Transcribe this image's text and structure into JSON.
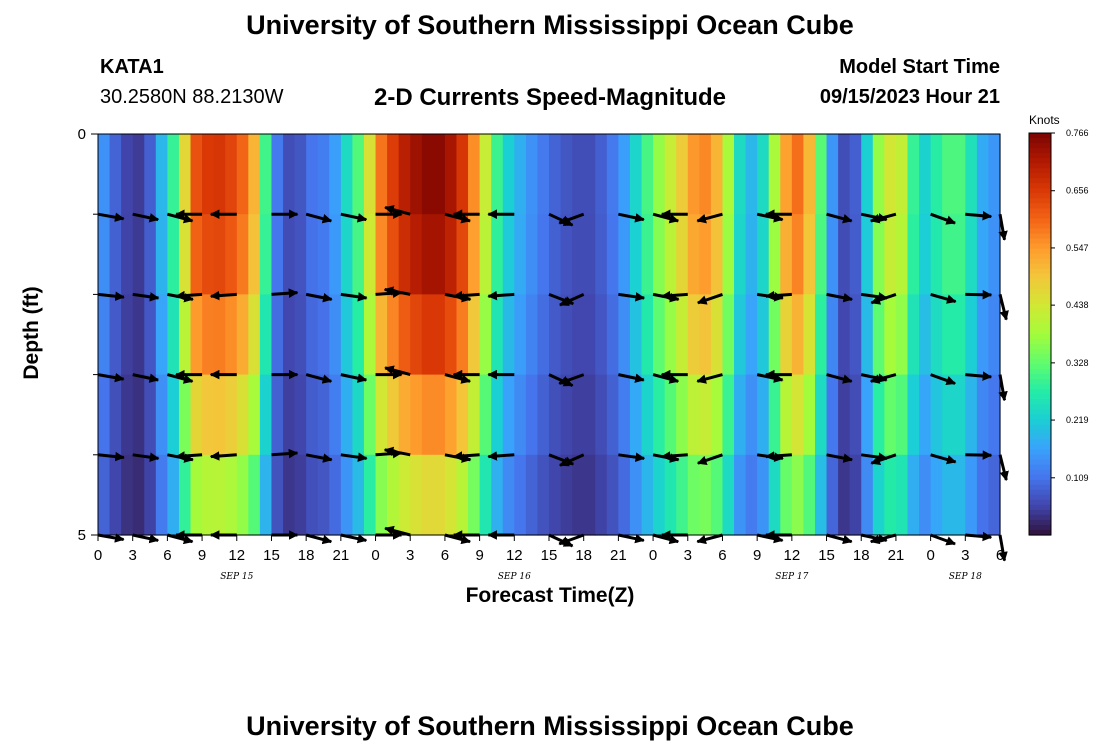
{
  "header": {
    "title": "University of Southern Mississippi Ocean Cube",
    "station": "KATA1",
    "coords": "30.2580N  88.2130W",
    "plot_title": "2-D Currents Speed-Magnitude",
    "model_label": "Model Start Time",
    "model_time": "09/15/2023 Hour 21"
  },
  "footer": {
    "title": "University of Southern Mississippi Ocean Cube"
  },
  "colors": {
    "palette": [
      "#30123b",
      "#4145ab",
      "#4675ed",
      "#39a2fc",
      "#1bcfd4",
      "#24eca6",
      "#61fc6c",
      "#a4fc3b",
      "#d1e834",
      "#f3c63a",
      "#fe9b2d",
      "#f36315",
      "#d93806",
      "#b11901",
      "#7a0403"
    ]
  },
  "chart_data": {
    "type": "heatmap",
    "title": "2-D Currents Speed-Magnitude",
    "xlabel": "Forecast Time(Z)",
    "ylabel": "Depth (ft)",
    "ylim": [
      0,
      5
    ],
    "y_ticks": [
      "0",
      "5"
    ],
    "x_tick_labels": [
      "0",
      "3",
      "6",
      "9",
      "12",
      "15",
      "18",
      "21",
      "0",
      "3",
      "6",
      "9",
      "12",
      "15",
      "18",
      "21",
      "0",
      "3",
      "6",
      "9",
      "12",
      "15",
      "18",
      "21",
      "0",
      "3",
      "6"
    ],
    "date_labels": [
      {
        "label": "SEP 15",
        "hour": 12
      },
      {
        "label": "SEP 16",
        "hour": 36
      },
      {
        "label": "SEP 17",
        "hour": 60
      },
      {
        "label": "SEP 18",
        "hour": 75
      }
    ],
    "hours_total": 78,
    "colorbar": {
      "unit": "Knots",
      "ticks": [
        "0.766",
        "0.656",
        "0.547",
        "0.438",
        "0.328",
        "0.219",
        "0.109"
      ],
      "tick_values": [
        0.766,
        0.656,
        0.547,
        0.438,
        0.328,
        0.219,
        0.109
      ],
      "min": 0.0,
      "max": 0.766
    },
    "time_profile": [
      [
        0,
        0.17
      ],
      [
        1,
        0.12
      ],
      [
        2,
        0.06
      ],
      [
        3,
        0.05
      ],
      [
        4,
        0.04
      ],
      [
        5,
        0.13
      ],
      [
        6,
        0.25
      ],
      [
        7,
        0.33
      ],
      [
        8,
        0.6
      ],
      [
        9,
        0.65
      ],
      [
        10,
        0.66
      ],
      [
        11,
        0.66
      ],
      [
        12,
        0.62
      ],
      [
        13,
        0.58
      ],
      [
        14,
        0.45
      ],
      [
        15,
        0.15
      ],
      [
        16,
        0.08
      ],
      [
        17,
        0.05
      ],
      [
        18,
        0.1
      ],
      [
        19,
        0.12
      ],
      [
        20,
        0.12
      ],
      [
        21,
        0.2
      ],
      [
        22,
        0.28
      ],
      [
        23,
        0.35
      ],
      [
        24,
        0.55
      ],
      [
        25,
        0.62
      ],
      [
        26,
        0.68
      ],
      [
        27,
        0.72
      ],
      [
        28,
        0.74
      ],
      [
        29,
        0.76
      ],
      [
        30,
        0.74
      ],
      [
        31,
        0.7
      ],
      [
        32,
        0.62
      ],
      [
        33,
        0.5
      ],
      [
        34,
        0.35
      ],
      [
        35,
        0.24
      ],
      [
        36,
        0.2
      ],
      [
        37,
        0.16
      ],
      [
        38,
        0.13
      ],
      [
        39,
        0.1
      ],
      [
        40,
        0.08
      ],
      [
        41,
        0.07
      ],
      [
        42,
        0.06
      ],
      [
        43,
        0.07
      ],
      [
        44,
        0.1
      ],
      [
        45,
        0.13
      ],
      [
        46,
        0.19
      ],
      [
        47,
        0.27
      ],
      [
        48,
        0.34
      ],
      [
        49,
        0.4
      ],
      [
        50,
        0.45
      ],
      [
        51,
        0.52
      ],
      [
        52,
        0.58
      ],
      [
        53,
        0.55
      ],
      [
        54,
        0.48
      ],
      [
        55,
        0.3
      ],
      [
        56,
        0.18
      ],
      [
        57,
        0.2
      ],
      [
        58,
        0.28
      ],
      [
        59,
        0.5
      ],
      [
        60,
        0.58
      ],
      [
        61,
        0.6
      ],
      [
        62,
        0.42
      ],
      [
        63,
        0.22
      ],
      [
        64,
        0.08
      ],
      [
        65,
        0.05
      ],
      [
        66,
        0.12
      ],
      [
        67,
        0.32
      ],
      [
        68,
        0.42
      ],
      [
        69,
        0.46
      ],
      [
        70,
        0.38
      ],
      [
        71,
        0.2
      ],
      [
        72,
        0.25
      ],
      [
        73,
        0.3
      ],
      [
        74,
        0.32
      ],
      [
        75,
        0.3
      ],
      [
        76,
        0.2
      ],
      [
        77,
        0.15
      ],
      [
        78,
        0.15
      ]
    ],
    "depth_factors": [
      1.0,
      1.0,
      0.93,
      0.82,
      0.68,
      0.55
    ],
    "vectors": {
      "hours": [
        0,
        3,
        6,
        9,
        12,
        15,
        18,
        21,
        24,
        27,
        30,
        33,
        36,
        39,
        42,
        45,
        48,
        51,
        54,
        57,
        60,
        63,
        66,
        69,
        72,
        75,
        78
      ],
      "depths": [
        1,
        2,
        3,
        4,
        5
      ],
      "angles_deg": [
        -10,
        -12,
        -15,
        180,
        180,
        0,
        -15,
        -12,
        0,
        165,
        -15,
        180,
        180,
        -25,
        200,
        -12,
        -15,
        180,
        195,
        -12,
        180,
        -15,
        -12,
        195,
        -20,
        -5,
        -80
      ]
    }
  }
}
